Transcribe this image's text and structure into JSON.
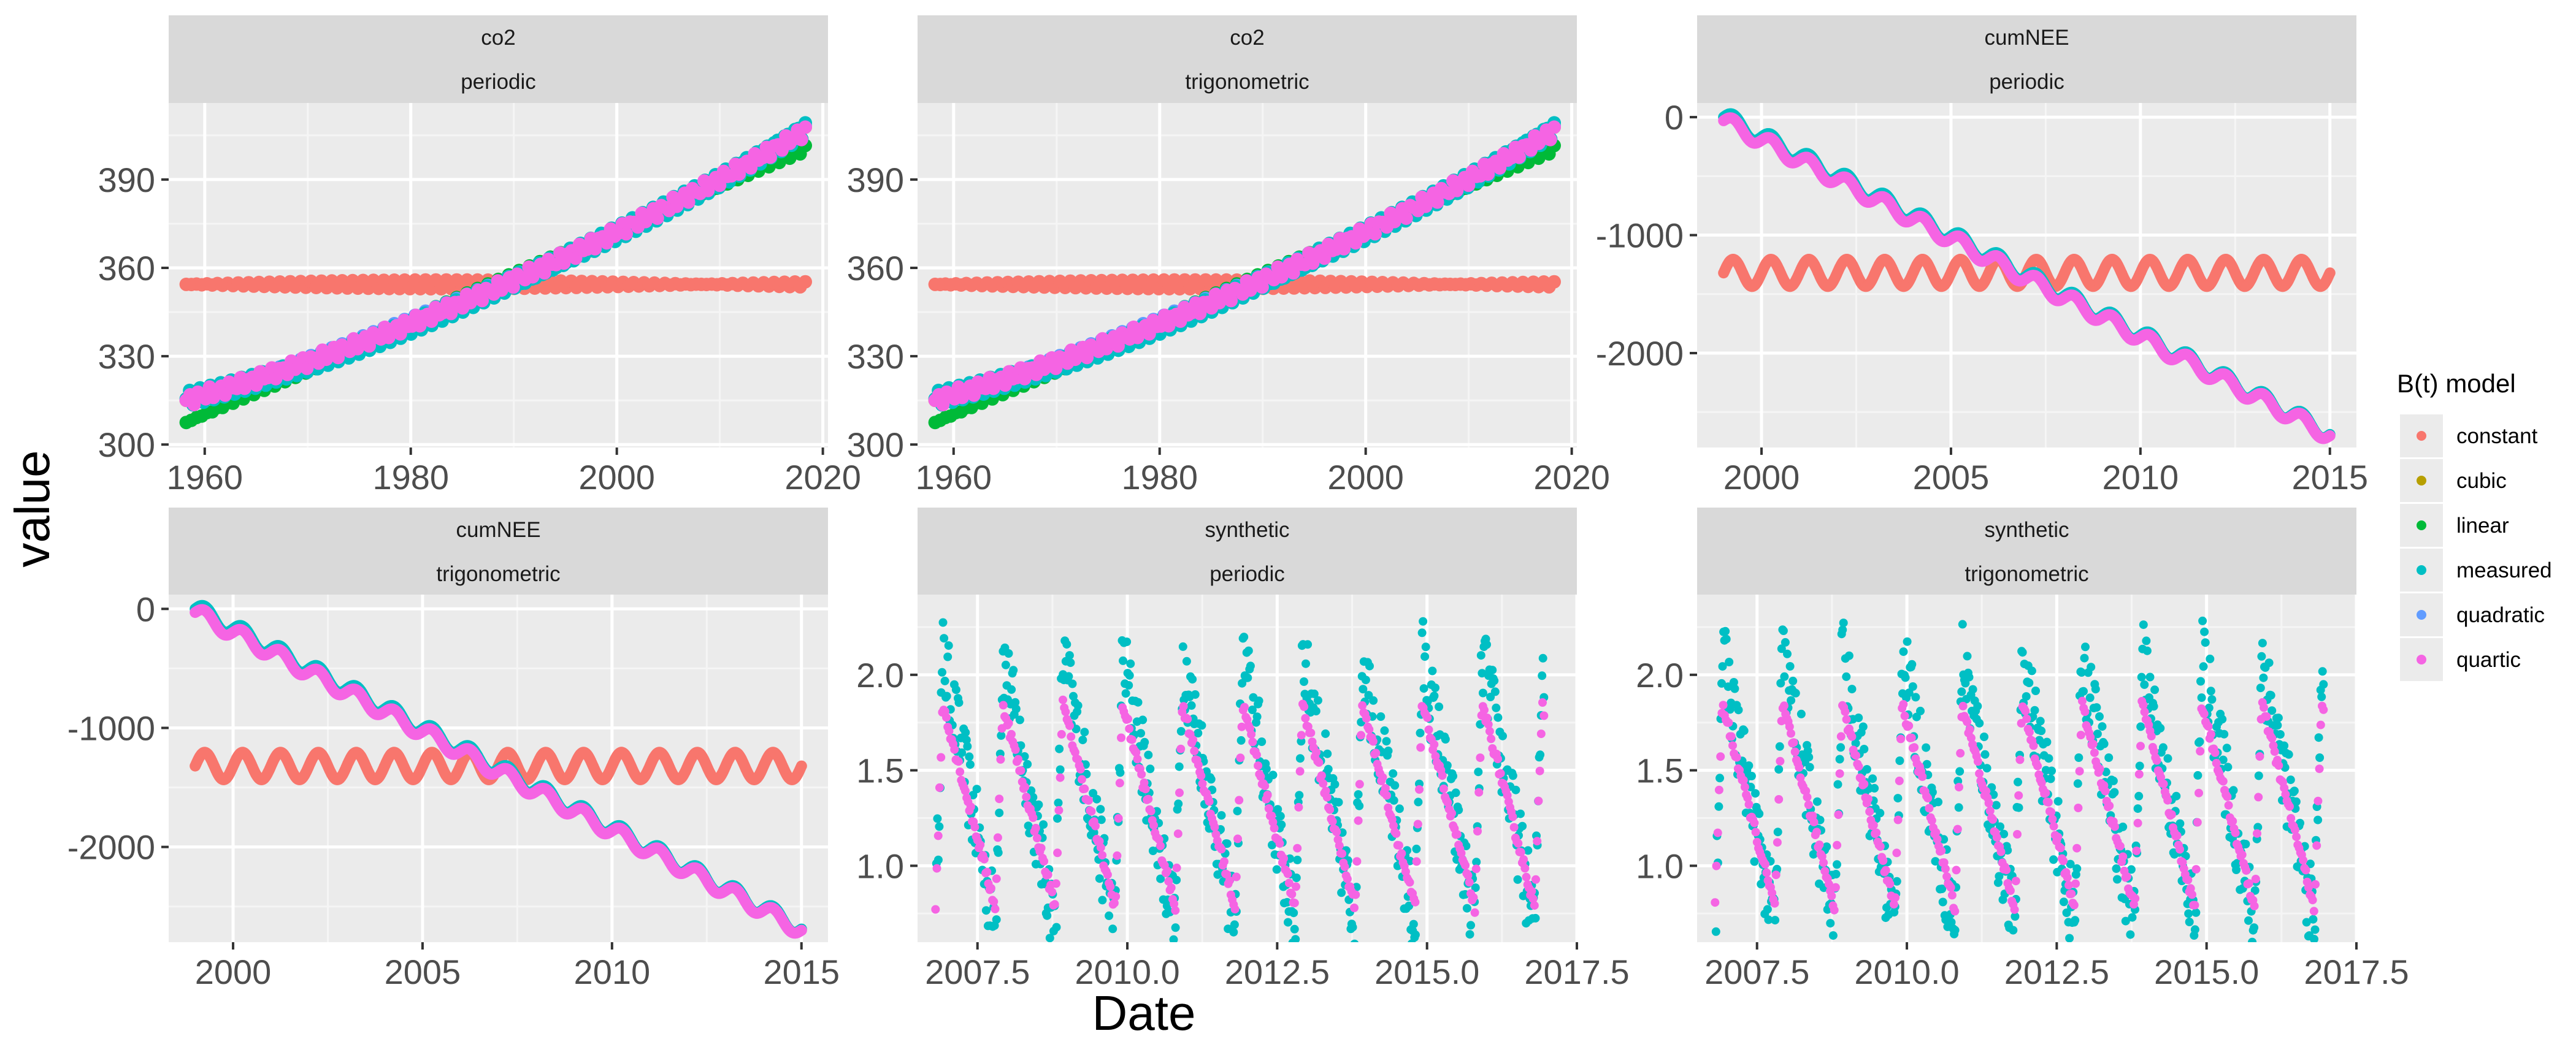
{
  "chart_data": {
    "type": "scatter",
    "xlabel": "Date",
    "ylabel": "value",
    "legend": {
      "title": "B(t) model",
      "position": "right",
      "entries": [
        {
          "name": "constant",
          "color": "#F8766D"
        },
        {
          "name": "cubic",
          "color": "#B79F00"
        },
        {
          "name": "linear",
          "color": "#00BA38"
        },
        {
          "name": "measured",
          "color": "#00BFC4"
        },
        {
          "name": "quadratic",
          "color": "#619CFF"
        },
        {
          "name": "quartic",
          "color": "#F564E3"
        }
      ]
    },
    "grid": true,
    "panels": [
      {
        "strip": [
          "co2",
          "periodic"
        ],
        "xlim": [
          1956.5,
          2020.5
        ],
        "ylim": [
          299,
          416
        ],
        "xticks": [
          1960,
          1980,
          2000,
          2020
        ],
        "xtick_labels": [
          "1960",
          "1980",
          "2000",
          "2020"
        ],
        "yticks": [
          300,
          330,
          360,
          390
        ],
        "ytick_labels": [
          "300",
          "330",
          "360",
          "390"
        ],
        "series": [
          {
            "name": "constant",
            "kind": "const",
            "x0": 1958.2,
            "x1": 2018.3,
            "value": 354.4,
            "amp": 1.5,
            "period": 1,
            "n": 120
          },
          {
            "name": "linear",
            "kind": "poly",
            "x0": 1958.2,
            "x1": 2018.3,
            "x": [
              1958.2,
              2018.3
            ],
            "y": [
              307.5,
              400.5
            ],
            "amp": 1.8,
            "period": 1,
            "n": 120
          },
          {
            "name": "cubic",
            "kind": "poly",
            "x0": 1958.2,
            "x1": 2018.3,
            "x": [
              1958.2,
              1988.2,
              2018.3
            ],
            "y": [
              315,
              352.5,
              406.5
            ],
            "amp": 2.2,
            "period": 1,
            "n": 120
          },
          {
            "name": "quadratic",
            "kind": "poly",
            "x0": 1958.2,
            "x1": 2018.3,
            "x": [
              1958.2,
              1988.2,
              2018.3
            ],
            "y": [
              315.5,
              353,
              407
            ],
            "amp": 2.2,
            "period": 1,
            "n": 120
          },
          {
            "name": "measured",
            "kind": "poly",
            "x0": 1958.2,
            "x1": 2018.3,
            "x": [
              1958.2,
              1988.2,
              2018.3
            ],
            "y": [
              315.5,
              352,
              407.5
            ],
            "amp": 3,
            "period": 1,
            "n": 180
          },
          {
            "name": "quartic",
            "kind": "poly",
            "x0": 1958.2,
            "x1": 2018.3,
            "x": [
              1958.2,
              1988.2,
              2018.3
            ],
            "y": [
              315,
              353,
              406.5
            ],
            "amp": 2.2,
            "period": 1,
            "n": 160
          }
        ]
      },
      {
        "strip": [
          "co2",
          "trigonometric"
        ],
        "xlim": [
          1956.5,
          2020.5
        ],
        "ylim": [
          299,
          416
        ],
        "xticks": [
          1960,
          1980,
          2000,
          2020
        ],
        "xtick_labels": [
          "1960",
          "1980",
          "2000",
          "2020"
        ],
        "yticks": [
          300,
          330,
          360,
          390
        ],
        "ytick_labels": [
          "300",
          "330",
          "360",
          "390"
        ],
        "series": [
          {
            "name": "constant",
            "kind": "const",
            "x0": 1958.2,
            "x1": 2018.3,
            "value": 354.4,
            "amp": 1.5,
            "period": 1,
            "n": 120
          },
          {
            "name": "linear",
            "kind": "poly",
            "x0": 1958.2,
            "x1": 2018.3,
            "x": [
              1958.2,
              2018.3
            ],
            "y": [
              307.5,
              400.5
            ],
            "amp": 1.8,
            "period": 1,
            "n": 120
          },
          {
            "name": "cubic",
            "kind": "poly",
            "x0": 1958.2,
            "x1": 2018.3,
            "x": [
              1958.2,
              1988.2,
              2018.3
            ],
            "y": [
              315,
              352.5,
              406.5
            ],
            "amp": 2.2,
            "period": 1,
            "n": 120
          },
          {
            "name": "quadratic",
            "kind": "poly",
            "x0": 1958.2,
            "x1": 2018.3,
            "x": [
              1958.2,
              1988.2,
              2018.3
            ],
            "y": [
              315.5,
              353,
              407
            ],
            "amp": 2.2,
            "period": 1,
            "n": 120
          },
          {
            "name": "measured",
            "kind": "poly",
            "x0": 1958.2,
            "x1": 2018.3,
            "x": [
              1958.2,
              1988.2,
              2018.3
            ],
            "y": [
              315.5,
              352,
              407.5
            ],
            "amp": 3,
            "period": 1,
            "n": 180
          },
          {
            "name": "quartic",
            "kind": "poly",
            "x0": 1958.2,
            "x1": 2018.3,
            "x": [
              1958.2,
              1988.2,
              2018.3
            ],
            "y": [
              315,
              353,
              406.5
            ],
            "amp": 2.2,
            "period": 1,
            "n": 160
          }
        ]
      },
      {
        "strip": [
          "cumNEE",
          "periodic"
        ],
        "xlim": [
          1998.3,
          2015.7
        ],
        "ylim": [
          -2800,
          120
        ],
        "xticks": [
          2000,
          2005,
          2010,
          2015
        ],
        "xtick_labels": [
          "2000",
          "2005",
          "2010",
          "2015"
        ],
        "yticks": [
          -2000,
          -1000,
          0
        ],
        "ytick_labels": [
          "-2000",
          "-1000",
          "0"
        ],
        "series": [
          {
            "name": "constant",
            "kind": "const",
            "x0": 1999.0,
            "x1": 2015.0,
            "value": -1320,
            "amp": 115,
            "period": 1,
            "n": 700
          },
          {
            "name": "measured",
            "kind": "poly",
            "x0": 1999.0,
            "x1": 2015.0,
            "x": [
              1999.0,
              2015.0
            ],
            "y": [
              0,
              -2690
            ],
            "amp": 65,
            "period": 1,
            "n": 700
          },
          {
            "name": "quartic",
            "kind": "poly",
            "x0": 1999.0,
            "x1": 2015.0,
            "x": [
              1999.0,
              2015.0
            ],
            "y": [
              -30,
              -2700
            ],
            "amp": 60,
            "period": 1,
            "n": 700
          }
        ]
      },
      {
        "strip": [
          "cumNEE",
          "trigonometric"
        ],
        "xlim": [
          1998.3,
          2015.7
        ],
        "ylim": [
          -2800,
          120
        ],
        "xticks": [
          2000,
          2005,
          2010,
          2015
        ],
        "xtick_labels": [
          "2000",
          "2005",
          "2010",
          "2015"
        ],
        "yticks": [
          -2000,
          -1000,
          0
        ],
        "ytick_labels": [
          "-2000",
          "-1000",
          "0"
        ],
        "series": [
          {
            "name": "constant",
            "kind": "const",
            "x0": 1999.0,
            "x1": 2015.0,
            "value": -1320,
            "amp": 115,
            "period": 1,
            "n": 700
          },
          {
            "name": "measured",
            "kind": "poly",
            "x0": 1999.0,
            "x1": 2015.0,
            "x": [
              1999.0,
              2015.0
            ],
            "y": [
              0,
              -2690
            ],
            "amp": 65,
            "period": 1,
            "n": 700
          },
          {
            "name": "quartic",
            "kind": "poly",
            "x0": 1999.0,
            "x1": 2015.0,
            "x": [
              1999.0,
              2015.0
            ],
            "y": [
              -30,
              -2700
            ],
            "amp": 60,
            "period": 1,
            "n": 700
          }
        ]
      },
      {
        "strip": [
          "synthetic",
          "periodic"
        ],
        "xlim": [
          2006.5,
          2017.5
        ],
        "ylim": [
          0.6,
          2.42
        ],
        "xticks": [
          2007.5,
          2010,
          2012.5,
          2015,
          2017.5
        ],
        "xtick_labels": [
          "2007.5",
          "2010.0",
          "2012.5",
          "2015.0",
          "2017.5"
        ],
        "yticks": [
          1.0,
          1.5,
          2.0
        ],
        "ytick_labels": [
          "1.0",
          "1.5",
          "2.0"
        ],
        "series": [
          {
            "name": "measured",
            "kind": "saw",
            "x0": 2006.8,
            "x1": 2016.95,
            "period": 1,
            "lo": 0.68,
            "hi": 2.1,
            "rise": 0.12,
            "jitter": 0.22,
            "n": 650
          },
          {
            "name": "quartic",
            "kind": "saw",
            "x0": 2006.8,
            "x1": 2016.95,
            "period": 1,
            "lo": 0.78,
            "hi": 1.85,
            "rise": 0.12,
            "jitter": 0.03,
            "n": 450
          }
        ]
      },
      {
        "strip": [
          "synthetic",
          "trigonometric"
        ],
        "xlim": [
          2006.5,
          2017.5
        ],
        "ylim": [
          0.6,
          2.42
        ],
        "xticks": [
          2007.5,
          2010,
          2012.5,
          2015,
          2017.5
        ],
        "xtick_labels": [
          "2007.5",
          "2010.0",
          "2012.5",
          "2015.0",
          "2017.5"
        ],
        "yticks": [
          1.0,
          1.5,
          2.0
        ],
        "ytick_labels": [
          "1.0",
          "1.5",
          "2.0"
        ],
        "series": [
          {
            "name": "measured",
            "kind": "saw",
            "x0": 2006.8,
            "x1": 2016.95,
            "period": 1,
            "lo": 0.68,
            "hi": 2.1,
            "rise": 0.12,
            "jitter": 0.22,
            "n": 650
          },
          {
            "name": "quartic",
            "kind": "saw",
            "x0": 2006.8,
            "x1": 2016.95,
            "period": 1,
            "lo": 0.78,
            "hi": 1.85,
            "rise": 0.12,
            "jitter": 0.03,
            "n": 450
          }
        ]
      }
    ]
  }
}
